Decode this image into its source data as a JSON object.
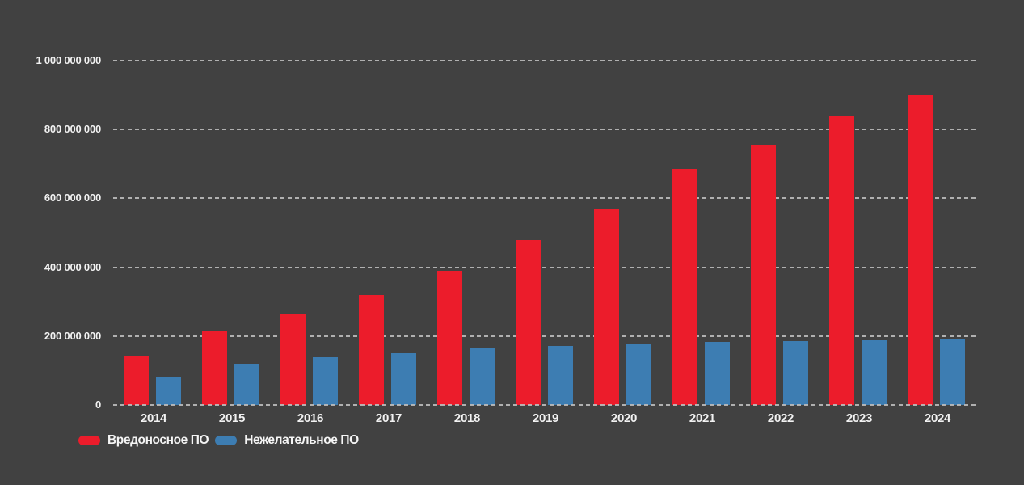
{
  "background_color": "#414141",
  "chart_data": {
    "type": "bar",
    "title": "",
    "xlabel": "",
    "ylabel": "",
    "categories": [
      "2014",
      "2015",
      "2016",
      "2017",
      "2018",
      "2019",
      "2020",
      "2021",
      "2022",
      "2023",
      "2024"
    ],
    "series": [
      {
        "name": "Вредоносное ПО",
        "color": "#ec1c2b",
        "values": [
          143000000,
          213000000,
          265000000,
          320000000,
          390000000,
          480000000,
          570000000,
          685000000,
          755000000,
          838000000,
          902000000
        ]
      },
      {
        "name": "Нежелательное ПО",
        "color": "#3d7db2",
        "values": [
          80000000,
          120000000,
          138000000,
          151000000,
          165000000,
          171000000,
          176000000,
          183000000,
          185000000,
          187000000,
          190000000
        ]
      }
    ],
    "ylim": [
      0,
      1000000000
    ],
    "yticks": [
      {
        "value": 0,
        "label": "0"
      },
      {
        "value": 200000000,
        "label": "200 000 000"
      },
      {
        "value": 400000000,
        "label": "400 000 000"
      },
      {
        "value": 600000000,
        "label": "600 000 000"
      },
      {
        "value": 800000000,
        "label": "800 000 000"
      },
      {
        "value": 1000000000,
        "label": "1 000 000 000"
      }
    ],
    "grid": "horizontal-dashed",
    "gridline_color": "#bdbdbd",
    "text_color": "#f2f2f2",
    "legend_position": "bottom-left"
  }
}
